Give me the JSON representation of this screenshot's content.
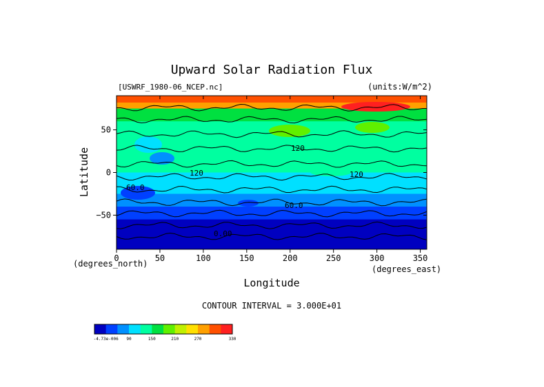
{
  "chart_data": {
    "type": "heatmap",
    "title": "Upward Solar Radiation Flux",
    "file_label": "[USWRF_1980-06_NCEP.nc]",
    "units_label": "(units:W/m^2)",
    "xlabel": "Longitude",
    "ylabel": "Latitude",
    "x_units_label": "(degrees_east)",
    "y_units_label": "(degrees_north)",
    "xlim": [
      0,
      357.5
    ],
    "ylim": [
      -90,
      90
    ],
    "xticks": [
      0,
      50,
      100,
      150,
      200,
      250,
      300,
      350
    ],
    "yticks": [
      -50,
      0,
      50
    ],
    "contour_interval_label": "CONTOUR INTERVAL = 3.000E+01",
    "contour_labels": [
      "60.0",
      "120",
      "120",
      "120",
      "60.0",
      "0.00"
    ],
    "colorbar": {
      "tick_labels": [
        "-4.73e-006",
        "90",
        "150",
        "210",
        "270",
        "330"
      ],
      "levels": [
        0,
        30,
        60,
        90,
        120,
        150,
        180,
        210,
        240,
        270,
        300,
        330
      ],
      "colors": [
        "#0000c0",
        "#0040ff",
        "#0090ff",
        "#00e0ff",
        "#00ffa0",
        "#00e040",
        "#60f000",
        "#c0f000",
        "#ffe000",
        "#ffa000",
        "#ff5000",
        "#ff2020"
      ]
    },
    "latitude_profile": [
      {
        "lat": 90,
        "value": 300
      },
      {
        "lat": 82,
        "value": 290
      },
      {
        "lat": 75,
        "value": 150
      },
      {
        "lat": 60,
        "value": 140
      },
      {
        "lat": 45,
        "value": 135
      },
      {
        "lat": 30,
        "value": 130
      },
      {
        "lat": 15,
        "value": 120
      },
      {
        "lat": 0,
        "value": 110
      },
      {
        "lat": -10,
        "value": 90
      },
      {
        "lat": -25,
        "value": 70
      },
      {
        "lat": -40,
        "value": 45
      },
      {
        "lat": -55,
        "value": 20
      },
      {
        "lat": -70,
        "value": 0
      },
      {
        "lat": -90,
        "value": 0
      }
    ]
  }
}
